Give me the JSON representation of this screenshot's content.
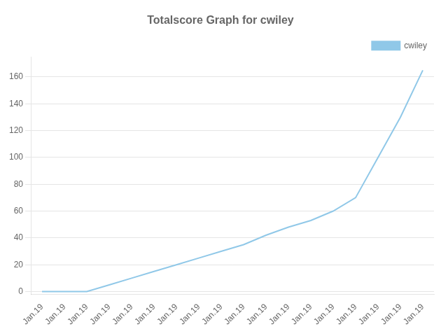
{
  "chart_data": {
    "type": "line",
    "title": "Totalscore Graph for cwiley",
    "categories": [
      "Jan.19",
      "Jan.19",
      "Jan.19",
      "Jan.19",
      "Jan.19",
      "Jan.19",
      "Jan.19",
      "Jan.19",
      "Jan.19",
      "Jan.19",
      "Jan.19",
      "Jan.19",
      "Jan.19",
      "Jan.19",
      "Jan.19",
      "Jan.19",
      "Jan.19",
      "Jan.19"
    ],
    "series": [
      {
        "name": "cwiley",
        "color": "#90c8e8",
        "values": [
          0,
          0,
          0,
          5,
          10,
          15,
          20,
          25,
          30,
          35,
          42,
          48,
          53,
          60,
          70,
          100,
          130,
          165
        ]
      }
    ],
    "ylim": [
      -2,
      175
    ],
    "yticks": [
      0,
      20,
      40,
      60,
      80,
      100,
      120,
      140,
      160
    ],
    "grid": true,
    "legend": "upper right"
  }
}
